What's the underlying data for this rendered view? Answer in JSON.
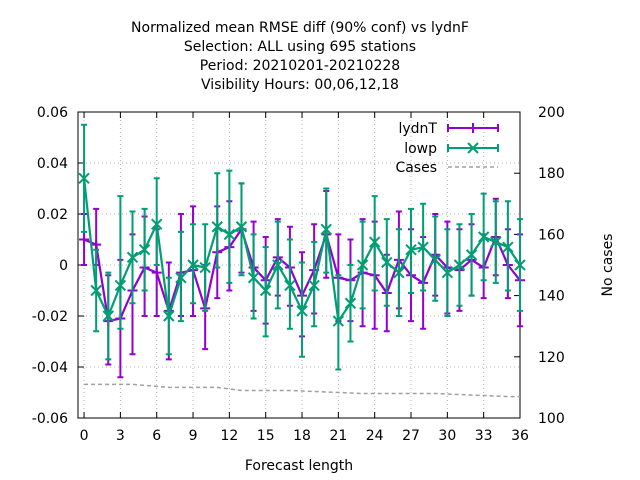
{
  "chart_data": {
    "type": "line",
    "title_lines": [
      "Normalized mean RMSE diff (90% conf) vs lydnF",
      "Selection: ALL using   695 stations",
      "Period: 20210201-20210228",
      "Visibility   Hours:  00,06,12,18"
    ],
    "xlabel": "Forecast length",
    "ylabel": "",
    "y2label": "No cases",
    "xlim": [
      -0.5,
      36
    ],
    "ylim": [
      -0.06,
      0.06
    ],
    "y2lim": [
      100,
      200
    ],
    "xticks": [
      0,
      3,
      6,
      9,
      12,
      15,
      18,
      21,
      24,
      27,
      30,
      33,
      36
    ],
    "yticks": [
      -0.06,
      -0.04,
      -0.02,
      0,
      0.02,
      0.04,
      0.06
    ],
    "y2ticks": [
      100,
      120,
      140,
      160,
      180,
      200
    ],
    "ytick_labels": [
      "-0.06",
      "-0.04",
      "-0.02",
      "0",
      "0.02",
      "0.04",
      "0.06"
    ],
    "grid": true,
    "legend_position": "top-right",
    "x": [
      0,
      1,
      2,
      3,
      4,
      5,
      6,
      7,
      8,
      9,
      10,
      11,
      12,
      13,
      14,
      15,
      16,
      17,
      18,
      19,
      20,
      21,
      22,
      23,
      24,
      25,
      26,
      27,
      28,
      29,
      30,
      31,
      32,
      33,
      34,
      35,
      36
    ],
    "series": [
      {
        "name": "lydnT",
        "color": "#9400d3",
        "marker": "plus",
        "values": [
          0.01,
          0.008,
          -0.022,
          -0.021,
          -0.01,
          -0.001,
          -0.003,
          -0.018,
          -0.003,
          -0.002,
          -0.017,
          0.005,
          0.007,
          0.014,
          -0.001,
          -0.006,
          0.003,
          -0.001,
          -0.012,
          -0.002,
          0.012,
          -0.005,
          -0.006,
          -0.003,
          -0.004,
          -0.011,
          0.002,
          -0.004,
          -0.007,
          0.004,
          -0.001,
          -0.002,
          0.002,
          -0.001,
          0.011,
          0.0,
          -0.006
        ],
        "err_low": [
          0.0,
          0.0,
          -0.039,
          -0.044,
          -0.035,
          -0.02,
          -0.02,
          -0.037,
          -0.02,
          -0.02,
          -0.033,
          -0.013,
          -0.01,
          -0.003,
          -0.018,
          -0.023,
          -0.012,
          -0.016,
          -0.028,
          -0.019,
          -0.005,
          -0.022,
          -0.022,
          -0.024,
          -0.025,
          -0.026,
          -0.017,
          -0.022,
          -0.025,
          -0.012,
          -0.019,
          -0.018,
          -0.012,
          -0.013,
          -0.004,
          -0.013,
          -0.024
        ],
        "err_high": [
          0.02,
          0.022,
          -0.004,
          0.002,
          0.012,
          0.019,
          0.014,
          0.001,
          0.02,
          0.023,
          0.0,
          0.023,
          0.025,
          0.032,
          0.017,
          0.011,
          0.018,
          0.015,
          0.005,
          0.016,
          0.029,
          0.012,
          0.01,
          0.018,
          0.017,
          0.004,
          0.021,
          0.014,
          0.011,
          0.02,
          0.017,
          0.014,
          0.016,
          0.012,
          0.026,
          0.014,
          0.012
        ]
      },
      {
        "name": "lowp",
        "color": "#009e73",
        "marker": "x",
        "values": [
          0.034,
          -0.01,
          -0.02,
          -0.008,
          0.003,
          0.006,
          0.016,
          -0.02,
          -0.005,
          0.0,
          -0.001,
          0.015,
          0.012,
          0.015,
          -0.005,
          -0.01,
          0.0,
          -0.008,
          -0.018,
          -0.008,
          0.014,
          -0.022,
          -0.015,
          0.0,
          0.009,
          0.001,
          -0.003,
          0.006,
          0.007,
          0.002,
          -0.003,
          0.0,
          0.004,
          0.011,
          0.009,
          0.007,
          0.0
        ],
        "err_low": [
          0.013,
          -0.026,
          -0.037,
          -0.025,
          -0.015,
          -0.01,
          0.0,
          -0.035,
          -0.022,
          -0.015,
          -0.018,
          -0.001,
          -0.007,
          -0.004,
          -0.021,
          -0.028,
          -0.017,
          -0.025,
          -0.036,
          -0.024,
          -0.003,
          -0.041,
          -0.03,
          -0.017,
          -0.01,
          -0.016,
          -0.02,
          -0.011,
          -0.01,
          -0.014,
          -0.02,
          -0.016,
          -0.012,
          -0.006,
          -0.007,
          -0.01,
          -0.018
        ],
        "err_high": [
          0.055,
          0.006,
          -0.003,
          0.027,
          0.021,
          0.022,
          0.034,
          -0.005,
          0.013,
          0.016,
          0.016,
          0.036,
          0.037,
          0.032,
          0.012,
          0.007,
          0.017,
          0.01,
          0.001,
          0.009,
          0.03,
          -0.004,
          0.0,
          0.017,
          0.027,
          0.018,
          0.014,
          0.022,
          0.024,
          0.019,
          0.014,
          0.016,
          0.02,
          0.028,
          0.025,
          0.025,
          0.018
        ]
      },
      {
        "name": "Cases",
        "color": "#a0a0a0",
        "axis": "y2",
        "style": "dashed",
        "x": [
          0,
          4,
          7,
          11,
          13,
          17,
          23,
          29,
          35,
          36
        ],
        "values": [
          111,
          111,
          110,
          110,
          109,
          109,
          108,
          108,
          107,
          107
        ]
      }
    ]
  }
}
